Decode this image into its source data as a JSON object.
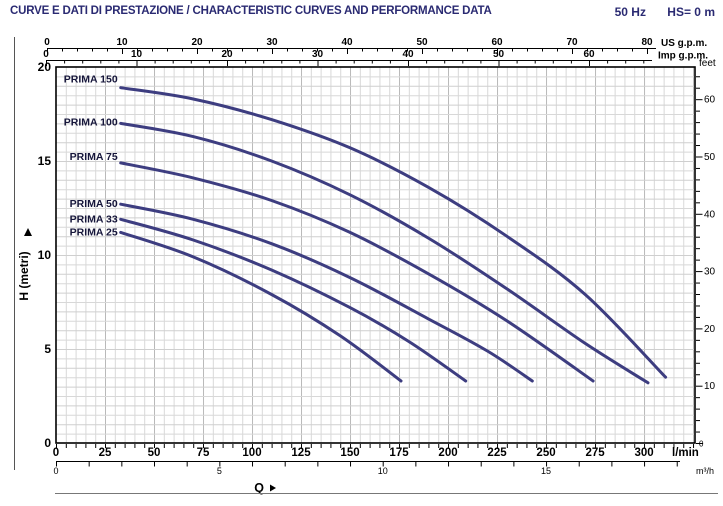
{
  "header": {
    "title": "CURVE E DATI DI PRESTAZIONE / CHARACTERISTIC CURVES AND PERFORMANCE DATA",
    "frequency": "50 Hz",
    "suction_head": "HS= 0 m"
  },
  "colors": {
    "accent_navy": "#2a2a72",
    "curve": "#3d3d80",
    "curve_label": "#15153a",
    "grid_minor": "#d8d8d8",
    "grid_mid": "#cfcfcf",
    "grid_major": "#b9b9b9",
    "axis": "#000000",
    "frame": "#555555",
    "bottom_rule": "#777777"
  },
  "chart_data": {
    "type": "line",
    "title": "",
    "xlabel": "Q",
    "grid": "on",
    "legend_position": "labels-at-curve-start",
    "x_axis_bottom_primary": {
      "label": "l/min",
      "range": [
        0,
        326
      ],
      "minor_step": 5,
      "ticks": [
        0,
        25,
        50,
        75,
        100,
        125,
        150,
        175,
        200,
        225,
        250,
        275,
        300
      ]
    },
    "x_axis_bottom_secondary": {
      "label": "m³/h",
      "range": [
        0,
        19
      ],
      "minor_step": 1,
      "ticks": [
        0,
        5,
        10,
        15
      ]
    },
    "x_axis_top_us": {
      "label": "US g.p.m.",
      "range": [
        0,
        80
      ],
      "minor_step": 2,
      "ticks": [
        0,
        10,
        20,
        30,
        40,
        50,
        60,
        70,
        80
      ]
    },
    "x_axis_top_imp": {
      "label": "Imp g.p.m.",
      "range": [
        0,
        66
      ],
      "minor_step": 2,
      "ticks": [
        0,
        10,
        20,
        30,
        40,
        50,
        60
      ]
    },
    "y_axis_left": {
      "label": "H (metri)",
      "range": [
        0,
        20
      ],
      "minor_step": 0.5,
      "ticks": [
        0,
        5,
        10,
        15,
        20
      ]
    },
    "y_axis_right": {
      "label": "feet",
      "range": [
        0,
        65.6
      ],
      "minor_step": 2,
      "ticks": [
        0,
        10,
        20,
        30,
        40,
        50,
        60
      ]
    },
    "series": [
      {
        "name": "PRIMA 150",
        "points": [
          [
            33,
            18.9
          ],
          [
            70,
            18.3
          ],
          [
            110,
            17.2
          ],
          [
            150,
            15.7
          ],
          [
            190,
            13.6
          ],
          [
            230,
            11.0
          ],
          [
            270,
            7.9
          ],
          [
            311,
            3.5
          ]
        ]
      },
      {
        "name": "PRIMA 100",
        "points": [
          [
            33,
            17.0
          ],
          [
            70,
            16.3
          ],
          [
            110,
            15.0
          ],
          [
            150,
            13.2
          ],
          [
            190,
            10.9
          ],
          [
            230,
            8.2
          ],
          [
            270,
            5.3
          ],
          [
            302,
            3.2
          ]
        ]
      },
      {
        "name": "PRIMA 75",
        "points": [
          [
            33,
            14.9
          ],
          [
            70,
            14.1
          ],
          [
            110,
            12.9
          ],
          [
            150,
            11.2
          ],
          [
            190,
            9.0
          ],
          [
            230,
            6.5
          ],
          [
            274,
            3.3
          ]
        ]
      },
      {
        "name": "PRIMA 50",
        "points": [
          [
            33,
            12.7
          ],
          [
            70,
            11.9
          ],
          [
            110,
            10.6
          ],
          [
            150,
            8.8
          ],
          [
            190,
            6.6
          ],
          [
            220,
            4.9
          ],
          [
            243,
            3.3
          ]
        ]
      },
      {
        "name": "PRIMA 33",
        "points": [
          [
            33,
            11.9
          ],
          [
            70,
            10.8
          ],
          [
            110,
            9.2
          ],
          [
            150,
            7.2
          ],
          [
            180,
            5.4
          ],
          [
            209,
            3.3
          ]
        ]
      },
      {
        "name": "PRIMA 25",
        "points": [
          [
            33,
            11.2
          ],
          [
            70,
            9.9
          ],
          [
            110,
            7.9
          ],
          [
            145,
            5.7
          ],
          [
            176,
            3.3
          ]
        ]
      }
    ]
  }
}
